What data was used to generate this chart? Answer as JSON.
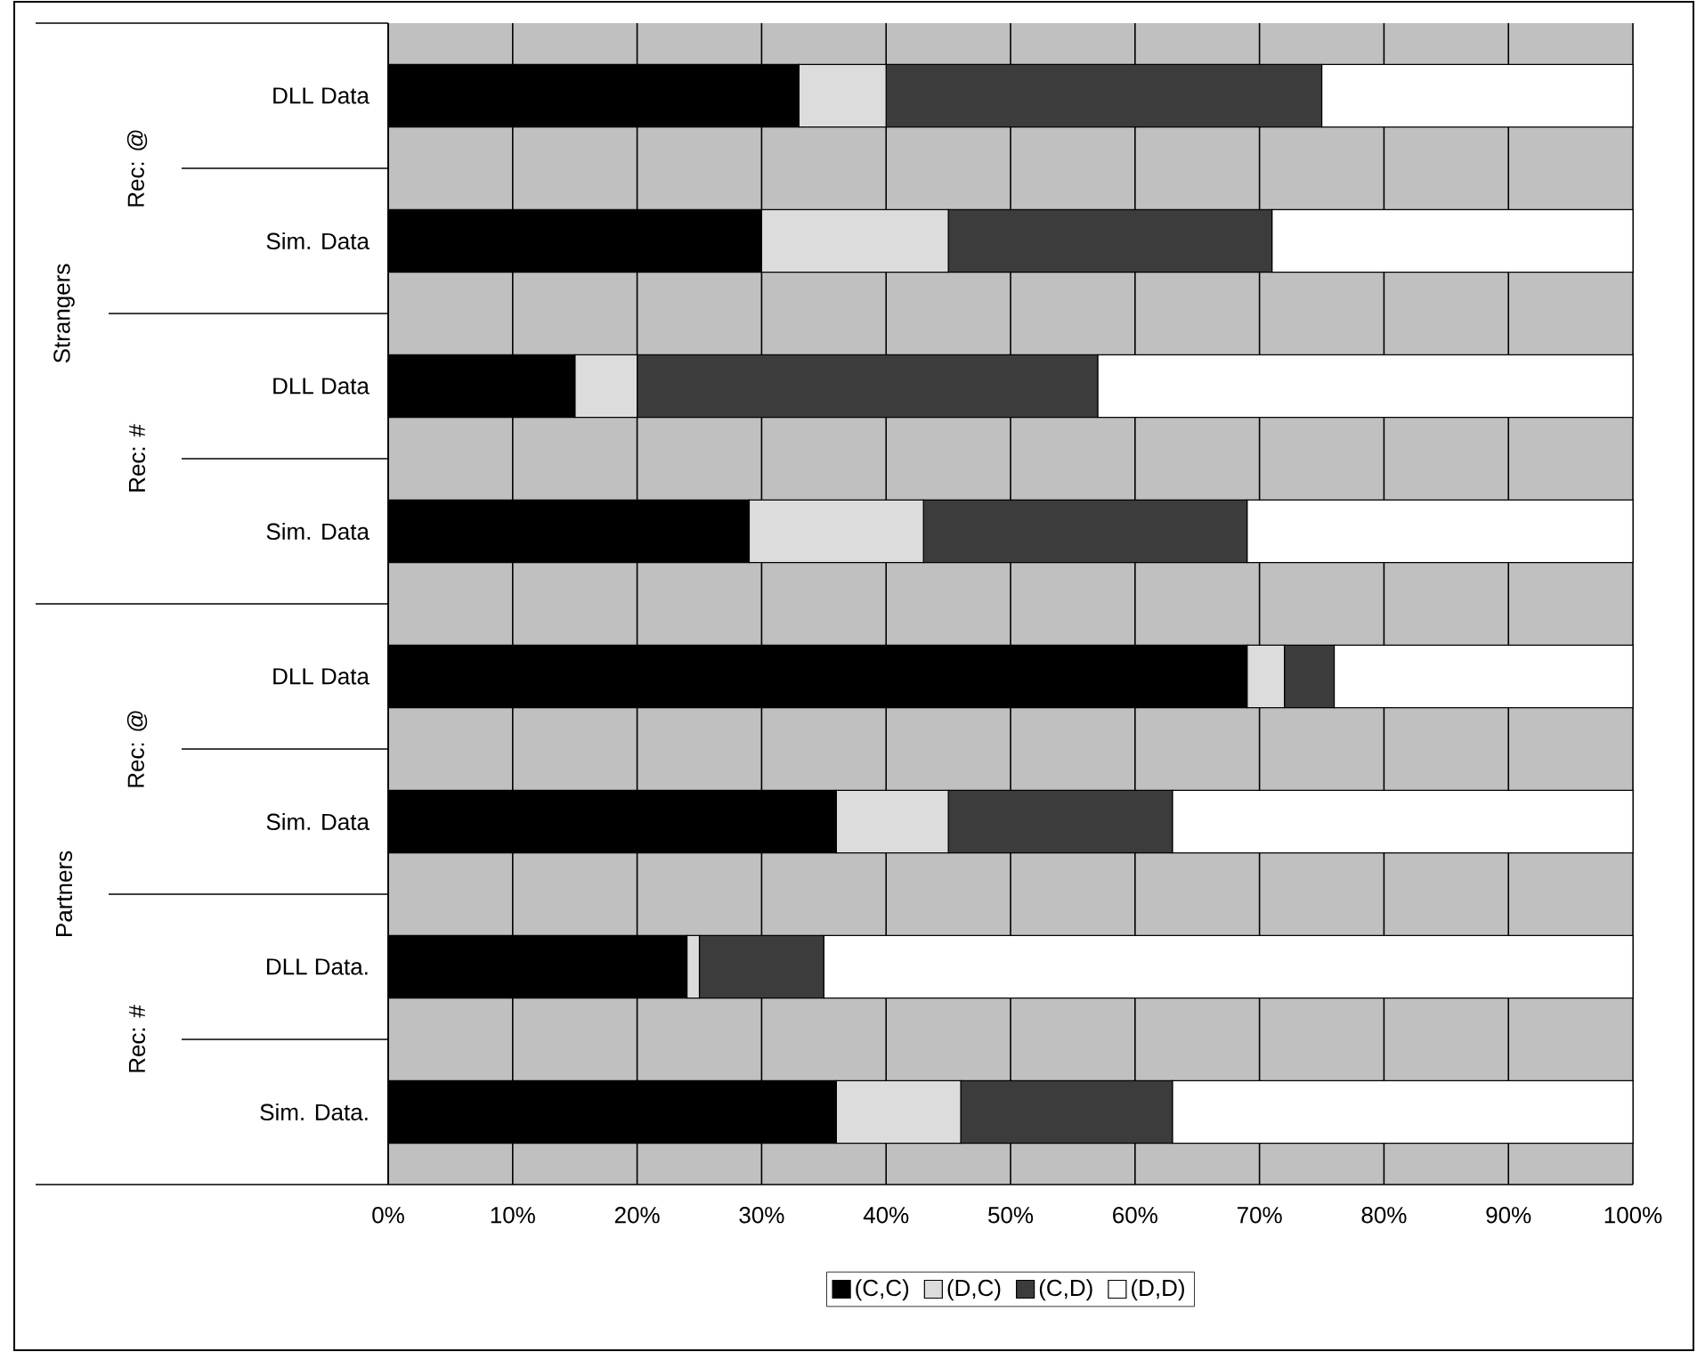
{
  "chart_data": {
    "type": "bar",
    "orientation": "horizontal",
    "stacked": true,
    "categories": [
      "DLL Data",
      "Sim. Data",
      "DLL Data",
      "Sim. Data",
      "DLL Data",
      "Sim. Data",
      "DLL Data.",
      "Sim. Data."
    ],
    "annotations": [
      "Rec: @",
      "Rec: #",
      "Rec: @",
      "Rec: #",
      "Strangers",
      "Partners"
    ],
    "series": [
      {
        "name": "(C,C)",
        "color": "#000000",
        "values": [
          33,
          30,
          15,
          29,
          69,
          36,
          24,
          36
        ]
      },
      {
        "name": "(D,C)",
        "color": "#dcdcdc",
        "values": [
          7,
          15,
          5,
          14,
          3,
          9,
          1,
          10
        ]
      },
      {
        "name": "(C,D)",
        "color": "#3c3c3c",
        "values": [
          35,
          26,
          37,
          26,
          4,
          18,
          10,
          17
        ]
      },
      {
        "name": "(D,D)",
        "color": "#ffffff",
        "values": [
          25,
          29,
          43,
          31,
          24,
          37,
          65,
          37
        ]
      }
    ],
    "xlim": [
      0,
      100
    ],
    "xticks": [
      {
        "value": 0,
        "label": "0%"
      },
      {
        "value": 10,
        "label": "10%"
      },
      {
        "value": 20,
        "label": "20%"
      },
      {
        "value": 30,
        "label": "30%"
      },
      {
        "value": 40,
        "label": "40%"
      },
      {
        "value": 50,
        "label": "50%"
      },
      {
        "value": 60,
        "label": "60%"
      },
      {
        "value": 70,
        "label": "70%"
      },
      {
        "value": 80,
        "label": "80%"
      },
      {
        "value": 90,
        "label": "90%"
      },
      {
        "value": 100,
        "label": "100%"
      }
    ],
    "grid": "x",
    "legend": "bottom"
  }
}
